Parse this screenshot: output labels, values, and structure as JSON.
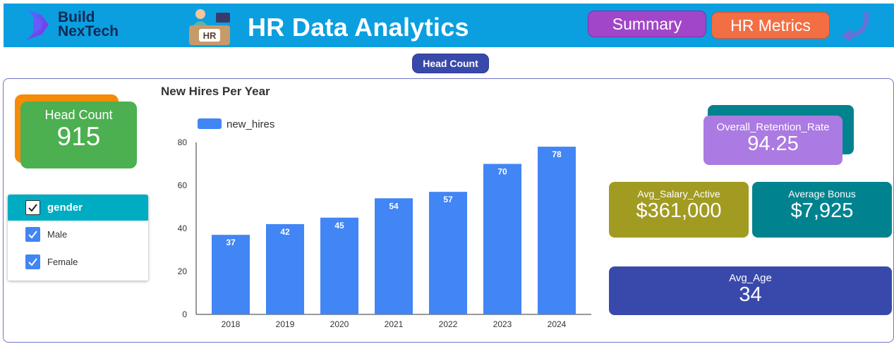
{
  "brand": {
    "line1": "Build",
    "line2": "NexTech"
  },
  "header": {
    "title": "HR Data Analytics",
    "illustration_text": "HR"
  },
  "nav": {
    "summary_label": "Summary",
    "metrics_label": "HR Metrics"
  },
  "filter_pill": {
    "label": "Head Count"
  },
  "kpis": {
    "head_count": {
      "label": "Head Count",
      "value": "915"
    },
    "retention": {
      "label": "Overall_Retention_Rate",
      "value": "94.25"
    },
    "salary": {
      "label": "Avg_Salary_Active",
      "value": "$361,000"
    },
    "bonus": {
      "label": "Average Bonus",
      "value": "$7,925"
    },
    "age": {
      "label": "Avg_Age",
      "value": "34"
    }
  },
  "gender_filter": {
    "header": "gender",
    "options": [
      {
        "label": "Male",
        "checked": true
      },
      {
        "label": "Female",
        "checked": true
      }
    ]
  },
  "colors": {
    "bar": "#4285f4",
    "header_bg": "#0b9fe0"
  },
  "chart_data": {
    "type": "bar",
    "title": "New Hires Per Year",
    "categories": [
      "2018",
      "2019",
      "2020",
      "2021",
      "2022",
      "2023",
      "2024"
    ],
    "series": [
      {
        "name": "new_hires",
        "values": [
          37,
          42,
          45,
          54,
          57,
          70,
          78
        ]
      }
    ],
    "ylim": [
      0,
      80
    ],
    "yticks": [
      0,
      20,
      40,
      60,
      80
    ],
    "xlabel": "",
    "ylabel": "",
    "legend": "top-left",
    "grid": false
  }
}
